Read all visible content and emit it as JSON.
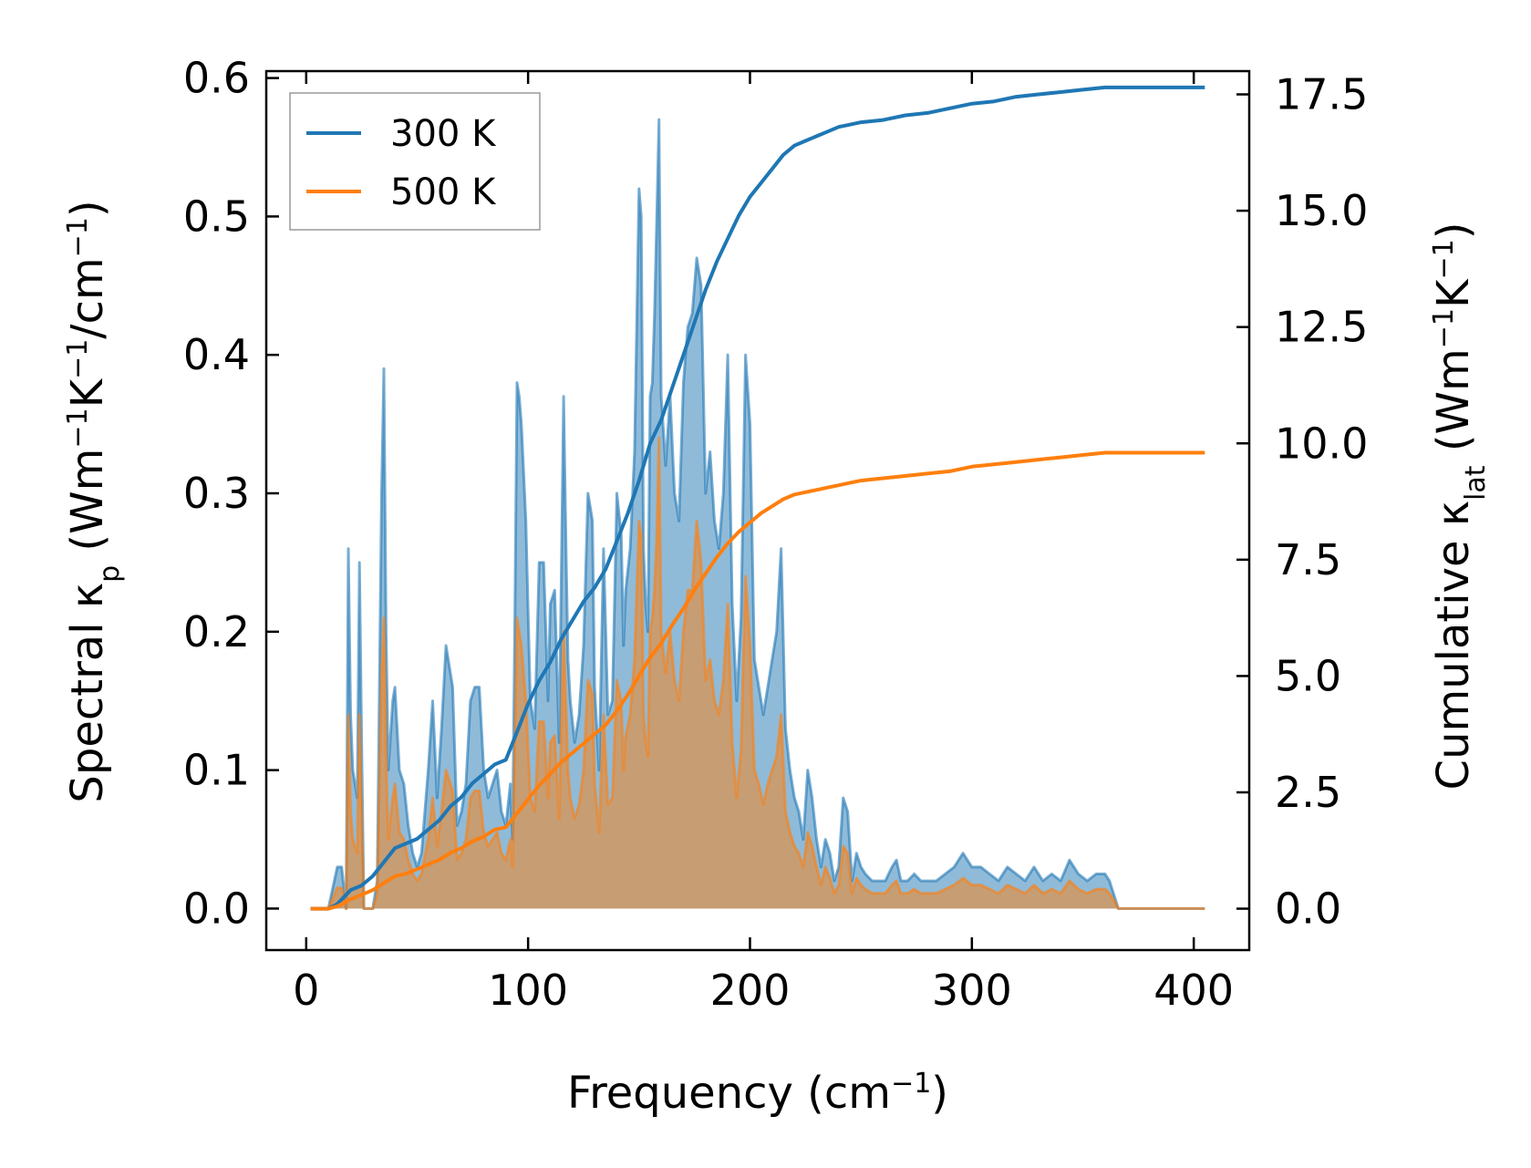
{
  "chart_data": {
    "type": "line",
    "xlabel": {
      "main": "Frequency (cm",
      "sup": "−1",
      "end": ")"
    },
    "ylabel_left": {
      "parts": [
        {
          "t": "Spectral κ"
        },
        {
          "t": "p",
          "sub": true
        },
        {
          "t": " (Wm"
        },
        {
          "t": "−1",
          "sup": true
        },
        {
          "t": "K"
        },
        {
          "t": "−1",
          "sup": true
        },
        {
          "t": "/cm"
        },
        {
          "t": "−1",
          "sup": true
        },
        {
          "t": ")"
        }
      ]
    },
    "ylabel_right": {
      "parts": [
        {
          "t": "Cumulative κ"
        },
        {
          "t": "lat",
          "sub": true
        },
        {
          "t": " (Wm"
        },
        {
          "t": "−1",
          "sup": true
        },
        {
          "t": "K"
        },
        {
          "t": "−1",
          "sup": true
        },
        {
          "t": ")"
        }
      ]
    },
    "xlim": [
      -18,
      425
    ],
    "ylim_left": [
      -0.03,
      0.605
    ],
    "ylim_right": [
      -0.89,
      18.0
    ],
    "xticks": [
      0,
      100,
      200,
      300,
      400
    ],
    "xtick_labels": [
      "0",
      "100",
      "200",
      "300",
      "400"
    ],
    "yticks_left": [
      0.0,
      0.1,
      0.2,
      0.3,
      0.4,
      0.5,
      0.6
    ],
    "ytick_labels_left": [
      "0.0",
      "0.1",
      "0.2",
      "0.3",
      "0.4",
      "0.5",
      "0.6"
    ],
    "yticks_right": [
      0.0,
      2.5,
      5.0,
      7.5,
      10.0,
      12.5,
      15.0,
      17.5
    ],
    "ytick_labels_right": [
      "0.0",
      "2.5",
      "5.0",
      "7.5",
      "10.0",
      "12.5",
      "15.0",
      "17.5"
    ],
    "colors": {
      "s300": "#1f77b4",
      "s500": "#ff7f0e",
      "fill300": "#1f77b4",
      "fill500": "#ff7f0e"
    },
    "legend": {
      "location": "upper-left",
      "entries": [
        "300 K",
        "500 K"
      ]
    },
    "spectral_x": [
      2,
      10,
      14,
      16,
      18,
      19,
      20,
      21,
      23,
      24,
      25,
      26,
      30,
      32,
      34,
      35,
      36,
      37,
      39,
      40,
      42,
      44,
      46,
      48,
      50,
      52,
      55,
      57,
      59,
      61,
      63,
      66,
      68,
      70,
      72,
      74,
      76,
      78,
      80,
      82,
      84,
      86,
      88,
      90,
      92,
      93,
      94,
      95,
      96,
      97,
      99,
      101,
      103,
      105,
      107,
      109,
      110,
      112,
      114,
      116,
      117,
      118,
      119,
      121,
      123,
      125,
      127,
      128,
      129,
      130,
      132,
      134,
      136,
      138,
      140,
      142,
      143,
      144,
      146,
      148,
      150,
      151,
      152,
      153,
      154,
      155,
      156,
      157,
      158,
      159,
      160,
      162,
      164,
      166,
      168,
      170,
      172,
      174,
      176,
      178,
      180,
      182,
      184,
      186,
      188,
      190,
      192,
      194,
      196,
      198,
      200,
      202,
      204,
      206,
      208,
      210,
      212,
      214,
      216,
      218,
      220,
      222,
      224,
      226,
      228,
      230,
      232,
      234,
      236,
      238,
      240,
      242,
      244,
      246,
      248,
      250,
      252,
      255,
      258,
      261,
      264,
      266,
      268,
      271,
      274,
      277,
      280,
      284,
      288,
      292,
      296,
      300,
      304,
      308,
      312,
      316,
      320,
      324,
      328,
      332,
      336,
      340,
      344,
      348,
      352,
      356,
      360,
      362,
      364,
      366,
      368,
      372,
      380,
      390,
      405
    ],
    "spectral_300": [
      0,
      0,
      0.03,
      0.03,
      0,
      0.26,
      0.14,
      0.1,
      0.08,
      0.25,
      0.12,
      0,
      0,
      0.02,
      0.3,
      0.39,
      0.2,
      0.1,
      0.15,
      0.16,
      0.1,
      0.09,
      0.06,
      0.04,
      0.03,
      0.04,
      0.1,
      0.15,
      0.08,
      0.13,
      0.19,
      0.16,
      0.06,
      0.07,
      0.09,
      0.15,
      0.16,
      0.16,
      0.1,
      0.08,
      0.09,
      0.1,
      0.07,
      0.06,
      0.09,
      0.05,
      0.2,
      0.38,
      0.37,
      0.35,
      0.28,
      0.15,
      0.13,
      0.25,
      0.25,
      0.15,
      0.22,
      0.23,
      0.12,
      0.37,
      0.27,
      0.18,
      0.15,
      0.12,
      0.14,
      0.19,
      0.3,
      0.29,
      0.28,
      0.16,
      0.1,
      0.26,
      0.14,
      0.15,
      0.3,
      0.27,
      0.19,
      0.23,
      0.26,
      0.33,
      0.52,
      0.5,
      0.26,
      0.22,
      0.2,
      0.37,
      0.38,
      0.43,
      0.5,
      0.57,
      0.37,
      0.32,
      0.37,
      0.3,
      0.28,
      0.38,
      0.42,
      0.43,
      0.47,
      0.45,
      0.3,
      0.33,
      0.28,
      0.26,
      0.3,
      0.4,
      0.22,
      0.15,
      0.21,
      0.4,
      0.35,
      0.18,
      0.16,
      0.14,
      0.16,
      0.18,
      0.2,
      0.26,
      0.13,
      0.1,
      0.08,
      0.07,
      0.05,
      0.1,
      0.08,
      0.05,
      0.03,
      0.05,
      0.04,
      0.02,
      0.03,
      0.08,
      0.07,
      0.02,
      0.04,
      0.03,
      0.025,
      0.02,
      0.02,
      0.02,
      0.03,
      0.035,
      0.02,
      0.02,
      0.025,
      0.02,
      0.02,
      0.02,
      0.025,
      0.03,
      0.04,
      0.03,
      0.03,
      0.025,
      0.02,
      0.03,
      0.025,
      0.02,
      0.03,
      0.02,
      0.025,
      0.02,
      0.035,
      0.025,
      0.02,
      0.025,
      0.025,
      0.02,
      0.01,
      0,
      0,
      0,
      0,
      0,
      0
    ],
    "spectral_500": [
      0,
      0,
      0.015,
      0.015,
      0,
      0.14,
      0.07,
      0.05,
      0.04,
      0.14,
      0.07,
      0,
      0,
      0.01,
      0.17,
      0.21,
      0.11,
      0.05,
      0.08,
      0.09,
      0.055,
      0.05,
      0.035,
      0.025,
      0.02,
      0.025,
      0.05,
      0.08,
      0.045,
      0.07,
      0.1,
      0.085,
      0.035,
      0.04,
      0.05,
      0.08,
      0.085,
      0.085,
      0.055,
      0.045,
      0.05,
      0.055,
      0.04,
      0.035,
      0.05,
      0.03,
      0.11,
      0.21,
      0.2,
      0.19,
      0.15,
      0.08,
      0.07,
      0.135,
      0.135,
      0.08,
      0.12,
      0.125,
      0.065,
      0.2,
      0.15,
      0.1,
      0.08,
      0.065,
      0.075,
      0.1,
      0.165,
      0.16,
      0.155,
      0.09,
      0.055,
      0.14,
      0.075,
      0.08,
      0.165,
      0.15,
      0.1,
      0.125,
      0.14,
      0.18,
      0.28,
      0.27,
      0.14,
      0.12,
      0.11,
      0.2,
      0.21,
      0.23,
      0.27,
      0.34,
      0.2,
      0.17,
      0.2,
      0.165,
      0.15,
      0.2,
      0.23,
      0.23,
      0.28,
      0.25,
      0.165,
      0.18,
      0.15,
      0.14,
      0.165,
      0.22,
      0.12,
      0.08,
      0.115,
      0.24,
      0.19,
      0.1,
      0.09,
      0.075,
      0.09,
      0.1,
      0.11,
      0.14,
      0.07,
      0.055,
      0.045,
      0.04,
      0.03,
      0.055,
      0.045,
      0.03,
      0.017,
      0.03,
      0.022,
      0.011,
      0.017,
      0.045,
      0.04,
      0.011,
      0.022,
      0.017,
      0.014,
      0.011,
      0.011,
      0.011,
      0.017,
      0.02,
      0.011,
      0.011,
      0.014,
      0.011,
      0.011,
      0.011,
      0.014,
      0.017,
      0.022,
      0.017,
      0.017,
      0.014,
      0.011,
      0.017,
      0.014,
      0.011,
      0.017,
      0.011,
      0.014,
      0.011,
      0.02,
      0.014,
      0.011,
      0.014,
      0.014,
      0.011,
      0.006,
      0,
      0,
      0,
      0,
      0,
      0
    ],
    "cum_x": [
      2,
      10,
      14,
      20,
      25,
      30,
      35,
      40,
      45,
      50,
      55,
      60,
      65,
      70,
      75,
      80,
      85,
      90,
      95,
      100,
      105,
      110,
      115,
      120,
      125,
      130,
      135,
      140,
      145,
      150,
      155,
      160,
      165,
      170,
      175,
      180,
      185,
      190,
      195,
      200,
      205,
      210,
      215,
      220,
      225,
      230,
      235,
      240,
      245,
      250,
      260,
      270,
      280,
      290,
      300,
      310,
      320,
      330,
      340,
      350,
      360,
      370,
      380,
      390,
      405
    ],
    "cum_300": [
      0,
      0,
      0.1,
      0.4,
      0.5,
      0.7,
      1.0,
      1.3,
      1.4,
      1.5,
      1.7,
      1.9,
      2.2,
      2.4,
      2.7,
      2.9,
      3.1,
      3.2,
      3.8,
      4.4,
      4.9,
      5.3,
      5.8,
      6.2,
      6.6,
      6.9,
      7.3,
      7.9,
      8.5,
      9.2,
      10.0,
      10.5,
      11.2,
      11.9,
      12.6,
      13.3,
      13.9,
      14.4,
      14.9,
      15.3,
      15.6,
      15.9,
      16.2,
      16.4,
      16.5,
      16.6,
      16.7,
      16.8,
      16.85,
      16.9,
      16.95,
      17.05,
      17.1,
      17.2,
      17.3,
      17.35,
      17.45,
      17.5,
      17.55,
      17.6,
      17.65,
      17.65,
      17.65,
      17.65,
      17.65
    ],
    "cum_500": [
      0,
      0,
      0.05,
      0.2,
      0.3,
      0.4,
      0.55,
      0.7,
      0.75,
      0.85,
      0.95,
      1.05,
      1.2,
      1.3,
      1.45,
      1.55,
      1.7,
      1.75,
      2.05,
      2.35,
      2.65,
      2.9,
      3.15,
      3.35,
      3.55,
      3.75,
      3.95,
      4.25,
      4.6,
      5.0,
      5.4,
      5.7,
      6.1,
      6.45,
      6.85,
      7.2,
      7.55,
      7.85,
      8.1,
      8.3,
      8.5,
      8.65,
      8.8,
      8.9,
      8.95,
      9.0,
      9.05,
      9.1,
      9.15,
      9.2,
      9.25,
      9.3,
      9.35,
      9.4,
      9.5,
      9.55,
      9.6,
      9.65,
      9.7,
      9.75,
      9.8,
      9.8,
      9.8,
      9.8,
      9.8
    ]
  }
}
